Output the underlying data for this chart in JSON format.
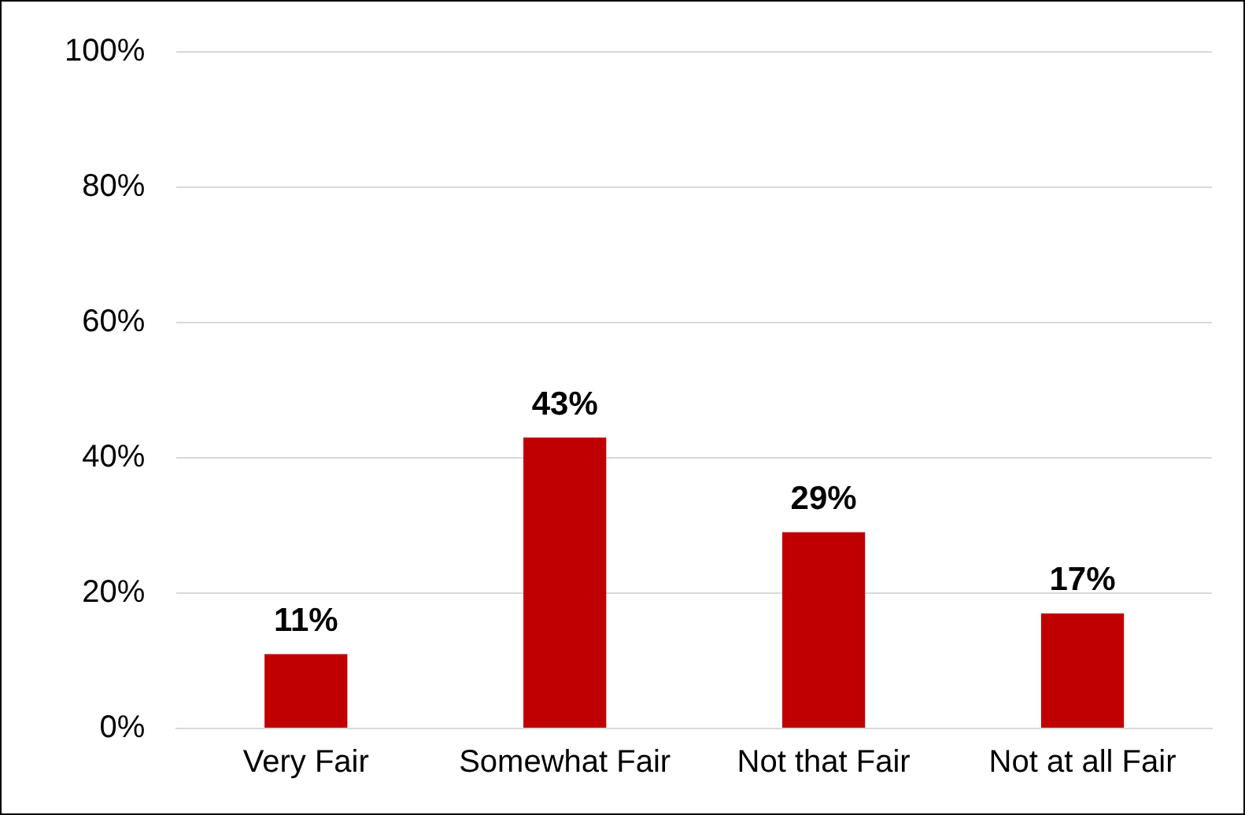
{
  "chart_data": {
    "type": "bar",
    "categories": [
      "Very Fair",
      "Somewhat Fair",
      "Not that Fair",
      "Not at all Fair"
    ],
    "values": [
      11,
      43,
      29,
      17
    ],
    "value_labels": [
      "11%",
      "43%",
      "29%",
      "17%"
    ],
    "color": "#c00000",
    "ylim": [
      0,
      100
    ],
    "yticks": [
      {
        "value": 0,
        "label": "0%"
      },
      {
        "value": 20,
        "label": "20%"
      },
      {
        "value": 40,
        "label": "40%"
      },
      {
        "value": 60,
        "label": "60%"
      },
      {
        "value": 80,
        "label": "80%"
      },
      {
        "value": 100,
        "label": "100%"
      }
    ],
    "grid": "y",
    "legend": false
  }
}
